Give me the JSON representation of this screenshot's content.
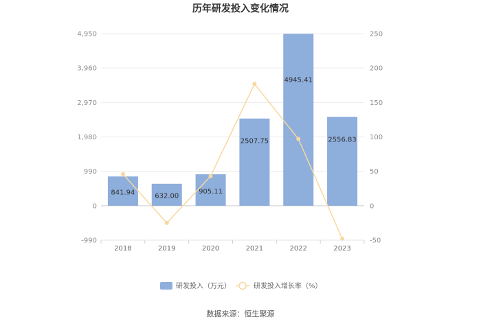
{
  "chart_data": {
    "type": "bar+line",
    "title": "历年研发投入变化情况",
    "categories": [
      "2018",
      "2019",
      "2020",
      "2021",
      "2022",
      "2023"
    ],
    "series": [
      {
        "name": "研发投入（万元）",
        "type": "bar",
        "axis": "left",
        "color": "#8eaedc",
        "values": [
          841.94,
          632.0,
          905.11,
          2507.75,
          4945.41,
          2556.83
        ],
        "labels": [
          "841.94",
          "632.00",
          "905.11",
          "2507.75",
          "4945.41",
          "2556.83"
        ]
      },
      {
        "name": "研发投入增长率（%）",
        "type": "line",
        "axis": "right",
        "color": "#f7d8a0",
        "values": [
          46,
          -25,
          43,
          177,
          97,
          -48
        ]
      }
    ],
    "left_axis": {
      "ylim": [
        -990,
        4950
      ],
      "ticks": [
        -990,
        0,
        990,
        1980,
        2970,
        3960,
        4950
      ],
      "tick_labels": [
        "-990",
        "0",
        "990",
        "1,980",
        "2,970",
        "3,960",
        "4,950"
      ]
    },
    "right_axis": {
      "ylim": [
        -50,
        250
      ],
      "ticks": [
        -50,
        0,
        50,
        100,
        150,
        200,
        250
      ],
      "tick_labels": [
        "-50",
        "0",
        "50",
        "100",
        "150",
        "200",
        "250"
      ]
    },
    "grid": true,
    "legend": "bottom-center"
  },
  "source_text": "数据来源：恒生聚源"
}
